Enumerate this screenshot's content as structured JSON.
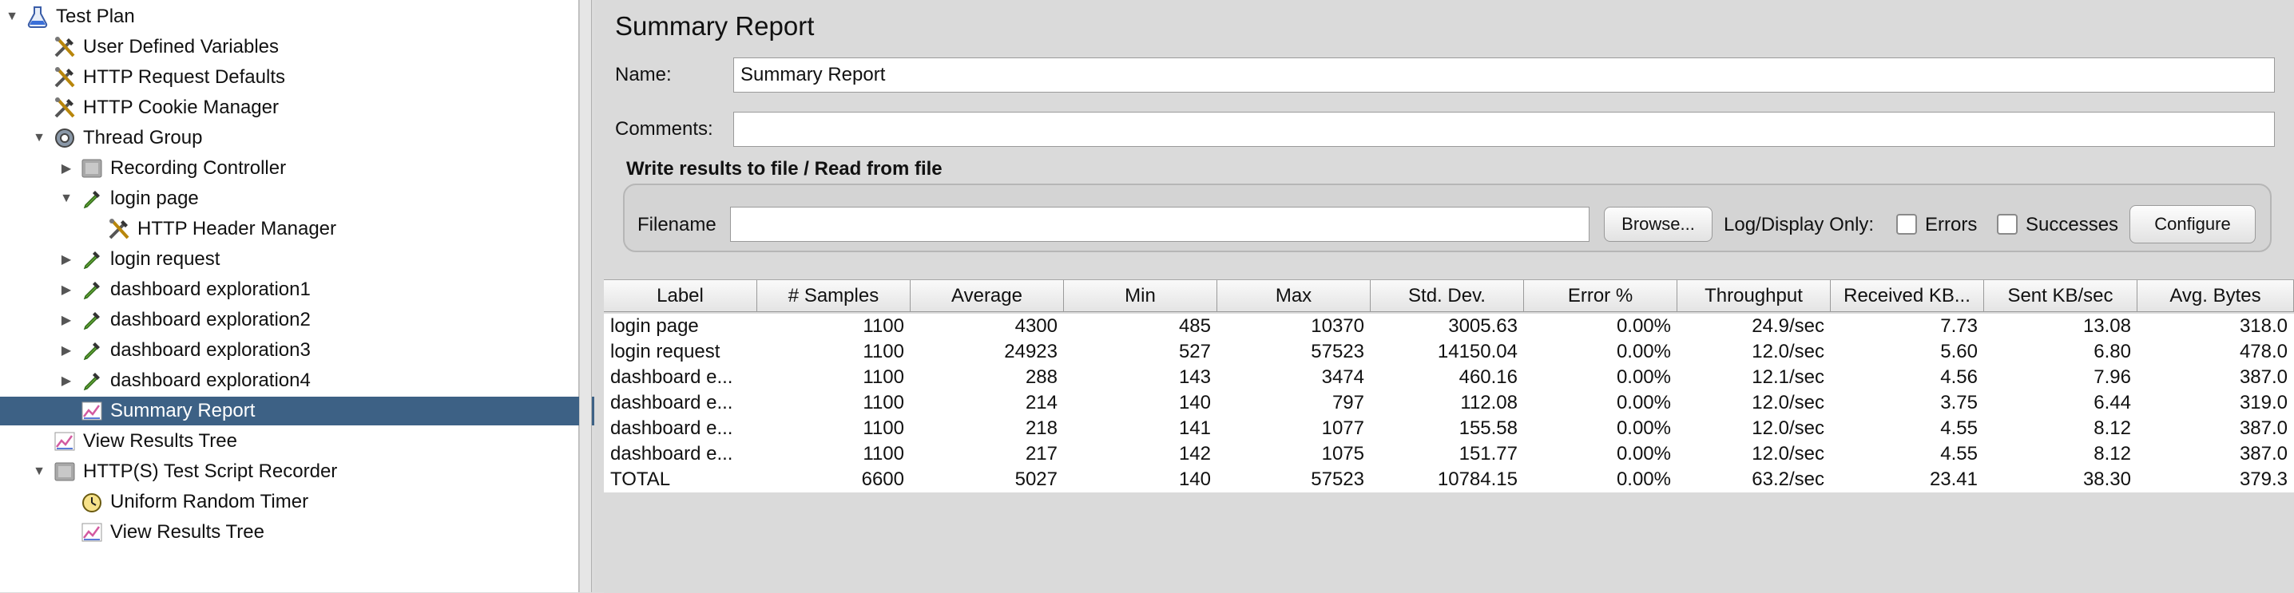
{
  "tree": {
    "items": [
      {
        "label": "Test Plan",
        "icon": "flask-icon",
        "depth": 0,
        "arrow": "▼"
      },
      {
        "label": "User Defined Variables",
        "icon": "tools-icon",
        "depth": 1,
        "arrow": ""
      },
      {
        "label": "HTTP Request Defaults",
        "icon": "tools-icon",
        "depth": 1,
        "arrow": ""
      },
      {
        "label": "HTTP Cookie Manager",
        "icon": "tools-icon",
        "depth": 1,
        "arrow": ""
      },
      {
        "label": "Thread Group",
        "icon": "gear-icon",
        "depth": 1,
        "arrow": "▼"
      },
      {
        "label": "Recording Controller",
        "icon": "controller-icon",
        "depth": 2,
        "arrow": "▶"
      },
      {
        "label": "login page",
        "icon": "pipette-icon",
        "depth": 2,
        "arrow": "▼"
      },
      {
        "label": "HTTP Header Manager",
        "icon": "tools-icon",
        "depth": 3,
        "arrow": ""
      },
      {
        "label": "login request",
        "icon": "pipette-icon",
        "depth": 2,
        "arrow": "▶"
      },
      {
        "label": "dashboard exploration1",
        "icon": "pipette-icon",
        "depth": 2,
        "arrow": "▶"
      },
      {
        "label": "dashboard exploration2",
        "icon": "pipette-icon",
        "depth": 2,
        "arrow": "▶"
      },
      {
        "label": "dashboard exploration3",
        "icon": "pipette-icon",
        "depth": 2,
        "arrow": "▶"
      },
      {
        "label": "dashboard exploration4",
        "icon": "pipette-icon",
        "depth": 2,
        "arrow": "▶"
      },
      {
        "label": "Summary Report",
        "icon": "graph-icon",
        "depth": 2,
        "arrow": "",
        "selected": true
      },
      {
        "label": "View Results Tree",
        "icon": "graph-icon",
        "depth": 1,
        "arrow": ""
      },
      {
        "label": "HTTP(S) Test Script Recorder",
        "icon": "controller-icon",
        "depth": 1,
        "arrow": "▼"
      },
      {
        "label": "Uniform Random Timer",
        "icon": "timer-icon",
        "depth": 2,
        "arrow": ""
      },
      {
        "label": "View Results Tree",
        "icon": "graph-icon",
        "depth": 2,
        "arrow": ""
      }
    ]
  },
  "panel": {
    "title": "Summary Report",
    "name_label": "Name:",
    "name_value": "Summary Report",
    "comments_label": "Comments:",
    "comments_value": "",
    "group_title": "Write results to file / Read from file",
    "filename_label": "Filename",
    "filename_value": "",
    "browse_label": "Browse...",
    "log_display_label": "Log/Display Only:",
    "errors_label": "Errors",
    "successes_label": "Successes",
    "configure_label": "Configure"
  },
  "table": {
    "columns": [
      "Label",
      "# Samples",
      "Average",
      "Min",
      "Max",
      "Std. Dev.",
      "Error %",
      "Throughput",
      "Received KB...",
      "Sent KB/sec",
      "Avg. Bytes"
    ],
    "rows": [
      [
        "login page",
        "1100",
        "4300",
        "485",
        "10370",
        "3005.63",
        "0.00%",
        "24.9/sec",
        "7.73",
        "13.08",
        "318.0"
      ],
      [
        "login request",
        "1100",
        "24923",
        "527",
        "57523",
        "14150.04",
        "0.00%",
        "12.0/sec",
        "5.60",
        "6.80",
        "478.0"
      ],
      [
        "dashboard e...",
        "1100",
        "288",
        "143",
        "3474",
        "460.16",
        "0.00%",
        "12.1/sec",
        "4.56",
        "7.96",
        "387.0"
      ],
      [
        "dashboard e...",
        "1100",
        "214",
        "140",
        "797",
        "112.08",
        "0.00%",
        "12.0/sec",
        "3.75",
        "6.44",
        "319.0"
      ],
      [
        "dashboard e...",
        "1100",
        "218",
        "141",
        "1077",
        "155.58",
        "0.00%",
        "12.0/sec",
        "4.55",
        "8.12",
        "387.0"
      ],
      [
        "dashboard e...",
        "1100",
        "217",
        "142",
        "1075",
        "151.77",
        "0.00%",
        "12.0/sec",
        "4.55",
        "8.12",
        "387.0"
      ],
      [
        "TOTAL",
        "6600",
        "5027",
        "140",
        "57523",
        "10784.15",
        "0.00%",
        "63.2/sec",
        "23.41",
        "38.30",
        "379.3"
      ]
    ]
  },
  "colors": {
    "selection": "#3d6185",
    "panel_bg": "#dadada"
  }
}
